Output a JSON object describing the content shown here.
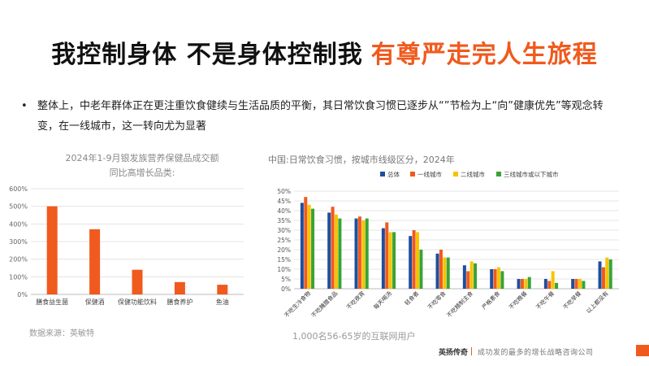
{
  "title": {
    "part1": "我控制身体 不是身体控制我",
    "part2": "有尊严走完人生旅程"
  },
  "bullet": {
    "symbol": "•",
    "text": "整体上，中老年群体正在更注重饮食健续与生活品质的平衡，其日常饮食习惯已逐步从“”节检为上“向”健康优先”等观念转变，在一线城市，这一转向尤为显著"
  },
  "left_chart": {
    "title_line1": "2024年1-9月银发族营养保健品成交额",
    "title_line2": "同比高增长品类:",
    "source": "数据来源：英敏特"
  },
  "right_chart": {
    "title": "中国:日常饮食习惯，按城市线级区分，2024年",
    "note": "1,000名56-65岁的互联网用户"
  },
  "footer": {
    "brand": "英扬传奇",
    "slogan": "成功发的最多的增长战略咨询公司"
  },
  "colors": {
    "accent": "#f05a1e",
    "series": [
      "#1f4e9c",
      "#f05a1e",
      "#f5c400",
      "#39a335"
    ]
  },
  "chart_data": [
    {
      "type": "bar",
      "title": "2024年1-9月银发族营养保健品成交额同比高增长品类:",
      "categories": [
        "膳食益生菌",
        "保健酒",
        "保健功能饮料",
        "膳食养护",
        "鱼油"
      ],
      "values": [
        500,
        370,
        140,
        70,
        55
      ],
      "ylim": [
        0,
        600
      ],
      "yticks": [
        "0%",
        "100%",
        "200%",
        "300%",
        "400%",
        "500%",
        "600%"
      ],
      "unit": "%",
      "grid": true
    },
    {
      "type": "bar",
      "title": "中国:日常饮食习惯，按城市线级区分，2024年",
      "categories": [
        "不吃生冷食物",
        "不吃腌腊食品",
        "不吃夜宵",
        "每天喝汤",
        "轻食者",
        "不吃零食",
        "不吃精制主食",
        "严格素食",
        "不吃晚餐",
        "不吃午餐",
        "不吃早餐",
        "以上都没有"
      ],
      "series": [
        {
          "name": "总体",
          "values": [
            44,
            39,
            36,
            31,
            27,
            18,
            12,
            10,
            5,
            5,
            5,
            14
          ]
        },
        {
          "name": "一线城市",
          "values": [
            47,
            42,
            37,
            34,
            30,
            20,
            9,
            10,
            5,
            4,
            5,
            11
          ]
        },
        {
          "name": "二线城市",
          "values": [
            43,
            38,
            35,
            29,
            29,
            16,
            14,
            11,
            5,
            9,
            5,
            16
          ]
        },
        {
          "name": "三线城市或以下城市",
          "values": [
            41,
            36,
            36,
            29,
            20,
            16,
            13,
            9,
            6,
            3,
            4,
            15
          ]
        }
      ],
      "ylim": [
        0,
        50
      ],
      "yticks": [
        "0%",
        "5%",
        "10%",
        "15%",
        "20%",
        "25%",
        "30%",
        "35%",
        "40%",
        "45%",
        "50%"
      ],
      "unit": "%",
      "legend": "top",
      "grid": true
    }
  ]
}
